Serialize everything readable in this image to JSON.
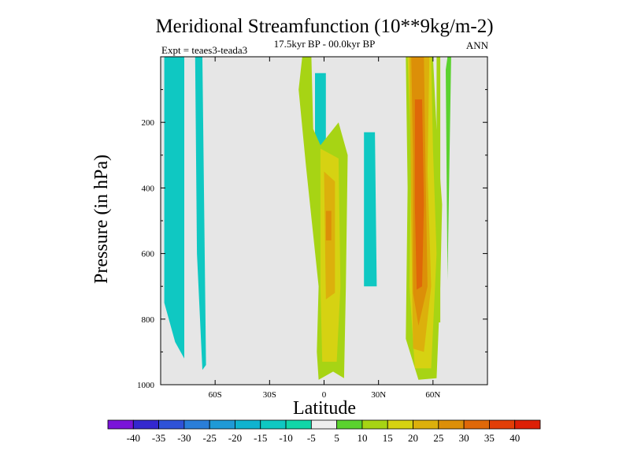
{
  "chart_data": {
    "type": "filled-contour",
    "title": "Meridional Streamfunction (10**9kg/m-2)",
    "subtitle": "17.5kyr BP - 00.0kyr BP",
    "left_label": "Expt = teaes3-teada3",
    "right_label": "ANN",
    "xlabel": "Latitude",
    "ylabel": "Pressure (in hPa)",
    "xlim": [
      -90,
      90
    ],
    "ylim": [
      0,
      1000
    ],
    "y_inverted": true,
    "x_ticks": [
      {
        "value": -60,
        "label": "60S"
      },
      {
        "value": -30,
        "label": "30S"
      },
      {
        "value": 0,
        "label": "0"
      },
      {
        "value": 30,
        "label": "30N"
      },
      {
        "value": 60,
        "label": "60N"
      }
    ],
    "y_ticks": [
      {
        "value": 200,
        "label": "200"
      },
      {
        "value": 400,
        "label": "400"
      },
      {
        "value": 600,
        "label": "600"
      },
      {
        "value": 800,
        "label": "800"
      },
      {
        "value": 1000,
        "label": "1000"
      }
    ],
    "levels": [
      "-40",
      "-35",
      "-30",
      "-25",
      "-20",
      "-15",
      "-10",
      "-5",
      "5",
      "10",
      "15",
      "20",
      "25",
      "30",
      "35",
      "40"
    ],
    "colors": [
      "#7a14d9",
      "#3428cf",
      "#2f52d8",
      "#2a7ed9",
      "#1f9ad6",
      "#0fb3cf",
      "#0fc8c2",
      "#12d6a8",
      "#eeeeee",
      "#5ad22e",
      "#a7d414",
      "#d6d212",
      "#dcb00c",
      "#dc8f08",
      "#df6808",
      "#e23e07",
      "#dd1f06"
    ],
    "background": "#e6e6e6",
    "regions": [
      {
        "name": "ss-negative-band-1",
        "level": -10,
        "points": [
          [
            -88,
            0
          ],
          [
            -77,
            0
          ],
          [
            -77,
            920
          ],
          [
            -82,
            870
          ],
          [
            -88,
            750
          ]
        ]
      },
      {
        "name": "ss-negative-band-2",
        "level": -10,
        "points": [
          [
            -71,
            0
          ],
          [
            -67,
            0
          ],
          [
            -65,
            940
          ],
          [
            -67,
            955
          ],
          [
            -70,
            600
          ]
        ]
      },
      {
        "name": "ss-negative-upper-mid",
        "level": -10,
        "points": [
          [
            -5,
            50
          ],
          [
            1,
            50
          ],
          [
            1,
            330
          ],
          [
            -5,
            280
          ]
        ]
      },
      {
        "name": "ss-negative-nh-mid",
        "level": -10,
        "points": [
          [
            22,
            230
          ],
          [
            28,
            230
          ],
          [
            29,
            700
          ],
          [
            22,
            700
          ]
        ]
      },
      {
        "name": "ss-positive-eq-outer",
        "level": 10,
        "points": [
          [
            -12,
            0
          ],
          [
            -7,
            0
          ],
          [
            -6,
            220
          ],
          [
            -2,
            270
          ],
          [
            8,
            200
          ],
          [
            13,
            300
          ],
          [
            12,
            700
          ],
          [
            11,
            980
          ],
          [
            5,
            960
          ],
          [
            -3,
            985
          ],
          [
            -4,
            900
          ],
          [
            -3,
            700
          ],
          [
            -10,
            330
          ],
          [
            -14,
            100
          ]
        ]
      },
      {
        "name": "ss-positive-eq-inner",
        "level": 15,
        "points": [
          [
            -2,
            280
          ],
          [
            8,
            310
          ],
          [
            9,
            700
          ],
          [
            7,
            930
          ],
          [
            -1,
            930
          ],
          [
            -2,
            700
          ]
        ]
      },
      {
        "name": "ss-positive-eq-core",
        "level": 20,
        "points": [
          [
            0,
            350
          ],
          [
            6,
            380
          ],
          [
            6,
            720
          ],
          [
            1,
            740
          ]
        ]
      },
      {
        "name": "ss-positive-eq-max",
        "level": 25,
        "points": [
          [
            1,
            470
          ],
          [
            4,
            470
          ],
          [
            4,
            560
          ],
          [
            1,
            560
          ]
        ]
      },
      {
        "name": "ss-positive-nh-outer",
        "level": 10,
        "points": [
          [
            45,
            0
          ],
          [
            60,
            0
          ],
          [
            62,
            220
          ],
          [
            65,
            450
          ],
          [
            64,
            700
          ],
          [
            62,
            980
          ],
          [
            52,
            985
          ],
          [
            45,
            860
          ],
          [
            46,
            400
          ]
        ]
      },
      {
        "name": "ss-positive-nh-inner",
        "level": 15,
        "points": [
          [
            46,
            0
          ],
          [
            59,
            0
          ],
          [
            60,
            280
          ],
          [
            62,
            600
          ],
          [
            59,
            950
          ],
          [
            50,
            950
          ],
          [
            47,
            700
          ],
          [
            48,
            300
          ]
        ]
      },
      {
        "name": "ss-positive-nh-ring",
        "level": 20,
        "points": [
          [
            47,
            0
          ],
          [
            58,
            0
          ],
          [
            57,
            350
          ],
          [
            59,
            700
          ],
          [
            55,
            900
          ],
          [
            49,
            890
          ],
          [
            48,
            500
          ]
        ]
      },
      {
        "name": "ss-positive-nh-ring-2",
        "level": 25,
        "points": [
          [
            48,
            0
          ],
          [
            55,
            0
          ],
          [
            56,
            380
          ],
          [
            57,
            700
          ],
          [
            52,
            820
          ],
          [
            49,
            720
          ],
          [
            49,
            300
          ]
        ]
      },
      {
        "name": "ss-positive-nh-core",
        "level": 30,
        "points": [
          [
            50,
            130
          ],
          [
            54,
            130
          ],
          [
            55,
            450
          ],
          [
            54,
            700
          ],
          [
            51,
            710
          ],
          [
            50,
            450
          ]
        ]
      },
      {
        "name": "ss-positive-nh-tail-1",
        "level": 10,
        "points": [
          [
            62,
            0
          ],
          [
            64,
            0
          ],
          [
            64,
            810
          ],
          [
            62,
            810
          ]
        ]
      },
      {
        "name": "ss-positive-nh-tail-2",
        "level": 5,
        "points": [
          [
            68,
            0
          ],
          [
            70,
            0
          ],
          [
            68,
            680
          ],
          [
            67,
            40
          ]
        ]
      }
    ]
  }
}
